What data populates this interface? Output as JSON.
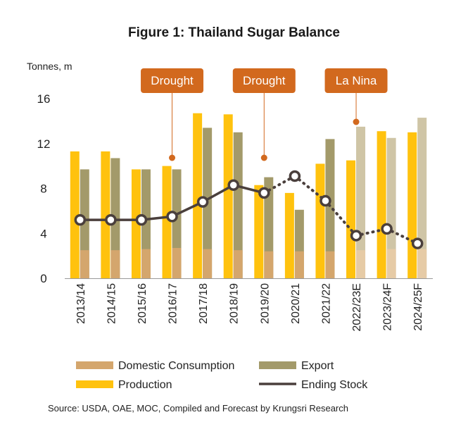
{
  "chart_data": {
    "type": "bar",
    "title": "Figure 1: Thailand Sugar Balance",
    "ylabel": "Tonnes, m",
    "ylim": [
      0,
      16
    ],
    "yticks": [
      0,
      4,
      8,
      12,
      16
    ],
    "grid": false,
    "legend_position": "bottom",
    "categories": [
      "2013/14",
      "2014/15",
      "2015/16",
      "2016/17",
      "2017/18",
      "2018/19",
      "2019/20",
      "2020/21",
      "2021/22",
      "2022/23E",
      "2023/24F",
      "2024/25F"
    ],
    "forecast_start_index": 9,
    "series": [
      {
        "name": "Production",
        "type": "bar",
        "color": "#FFC20E",
        "forecast_color": "#FFC20E",
        "values": [
          11.3,
          11.3,
          9.7,
          10.0,
          14.7,
          14.6,
          8.3,
          7.6,
          10.2,
          10.5,
          13.1,
          13.0
        ]
      },
      {
        "name": "Export",
        "type": "bar",
        "color": "#A39A6A",
        "forecast_color": "#CFC5A6",
        "values": [
          9.7,
          10.7,
          9.7,
          9.7,
          13.4,
          13.0,
          9.0,
          6.1,
          12.4,
          13.5,
          12.5,
          14.3
        ]
      },
      {
        "name": "Domestic Consumption",
        "type": "bar",
        "color": "#D4A66D",
        "forecast_color": "#E6CBA6",
        "values": [
          2.5,
          2.5,
          2.6,
          2.7,
          2.6,
          2.5,
          2.4,
          2.4,
          2.4,
          2.5,
          2.6,
          2.6
        ]
      },
      {
        "name": "Ending Stock",
        "type": "line",
        "color": "#4A3F3C",
        "values": [
          5.2,
          5.2,
          5.2,
          5.5,
          6.8,
          8.3,
          7.6,
          9.1,
          6.9,
          3.8,
          4.4,
          3.1
        ],
        "dashed_segments": [
          [
            6,
            7
          ],
          [
            7,
            8
          ],
          [
            8,
            9
          ],
          [
            9,
            10
          ],
          [
            10,
            11
          ]
        ]
      }
    ],
    "annotations": [
      {
        "text": "Drought",
        "category_index": 3
      },
      {
        "text": "Drought",
        "category_index": 6
      },
      {
        "text": "La Nina",
        "category_index": 9
      }
    ],
    "source": "Source:  USDA, OAE, MOC, Compiled and Forecast by Krungsri Research"
  }
}
